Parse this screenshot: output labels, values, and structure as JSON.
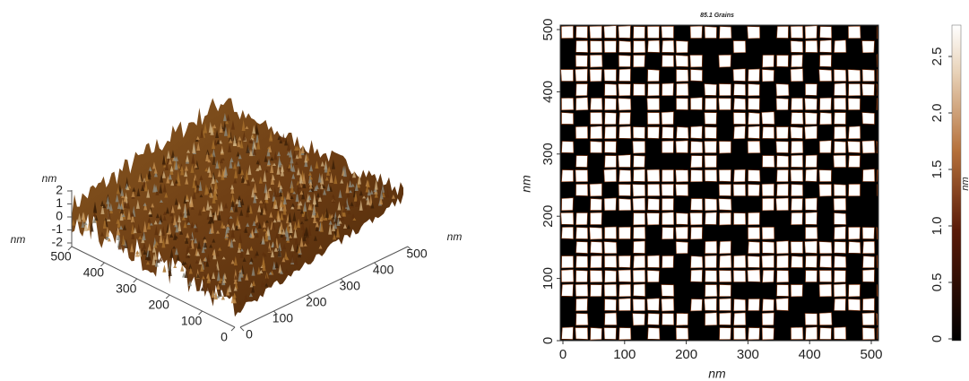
{
  "surface_3d": {
    "z_label": "nm",
    "z_ticks": [
      2,
      1,
      0,
      -1,
      -2
    ],
    "y_label": "nm",
    "y_ticks": [
      500,
      400,
      300,
      200,
      100,
      0
    ],
    "x_label": "nm",
    "x_ticks": [
      0,
      100,
      200,
      300,
      400,
      500
    ]
  },
  "grain_map": {
    "title": "85.1 Grains",
    "x_label": "nm",
    "y_label": "nm",
    "x_ticks": [
      0,
      100,
      200,
      300,
      400,
      500
    ],
    "y_ticks": [
      0,
      100,
      200,
      300,
      400,
      500
    ]
  },
  "colorbar": {
    "label": "nm",
    "ticks": [
      0,
      {
        "value": 0.5,
        "label": "0.5"
      },
      {
        "value": 1,
        "label": "1.0"
      },
      {
        "value": 1.5,
        "label": "1.5"
      },
      {
        "value": 2,
        "label": "2.0"
      },
      {
        "value": 2.5,
        "label": "2.5"
      }
    ]
  }
}
